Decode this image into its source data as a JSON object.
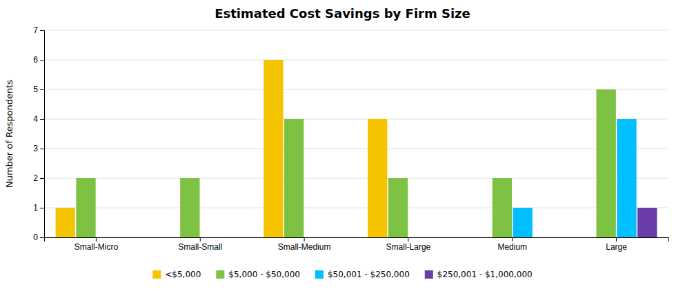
{
  "chart_data": {
    "type": "bar",
    "title": "Estimated Cost Savings by Firm Size",
    "ylabel": "Number of Respondents",
    "categories": [
      "Small-Micro",
      "Small-Small",
      "Small-Medium",
      "Small-Large",
      "Medium",
      "Large"
    ],
    "series": [
      {
        "name": "<$5,000",
        "color": "#F5C400",
        "values": [
          1,
          0,
          6,
          4,
          0,
          0
        ]
      },
      {
        "name": "$5,000 - $50,000",
        "color": "#7DC242",
        "values": [
          2,
          2,
          4,
          2,
          2,
          5
        ]
      },
      {
        "name": "$50,001 - $250,000",
        "color": "#00BFFF",
        "values": [
          0,
          0,
          0,
          0,
          1,
          4
        ]
      },
      {
        "name": "$250,001 - $1,000,000",
        "color": "#6A3DAB",
        "values": [
          0,
          0,
          0,
          0,
          0,
          1
        ]
      }
    ],
    "ylim": [
      0,
      7
    ],
    "yticks": [
      0,
      1,
      2,
      3,
      4,
      5,
      6,
      7
    ],
    "grid": true,
    "legend": "bottom"
  }
}
